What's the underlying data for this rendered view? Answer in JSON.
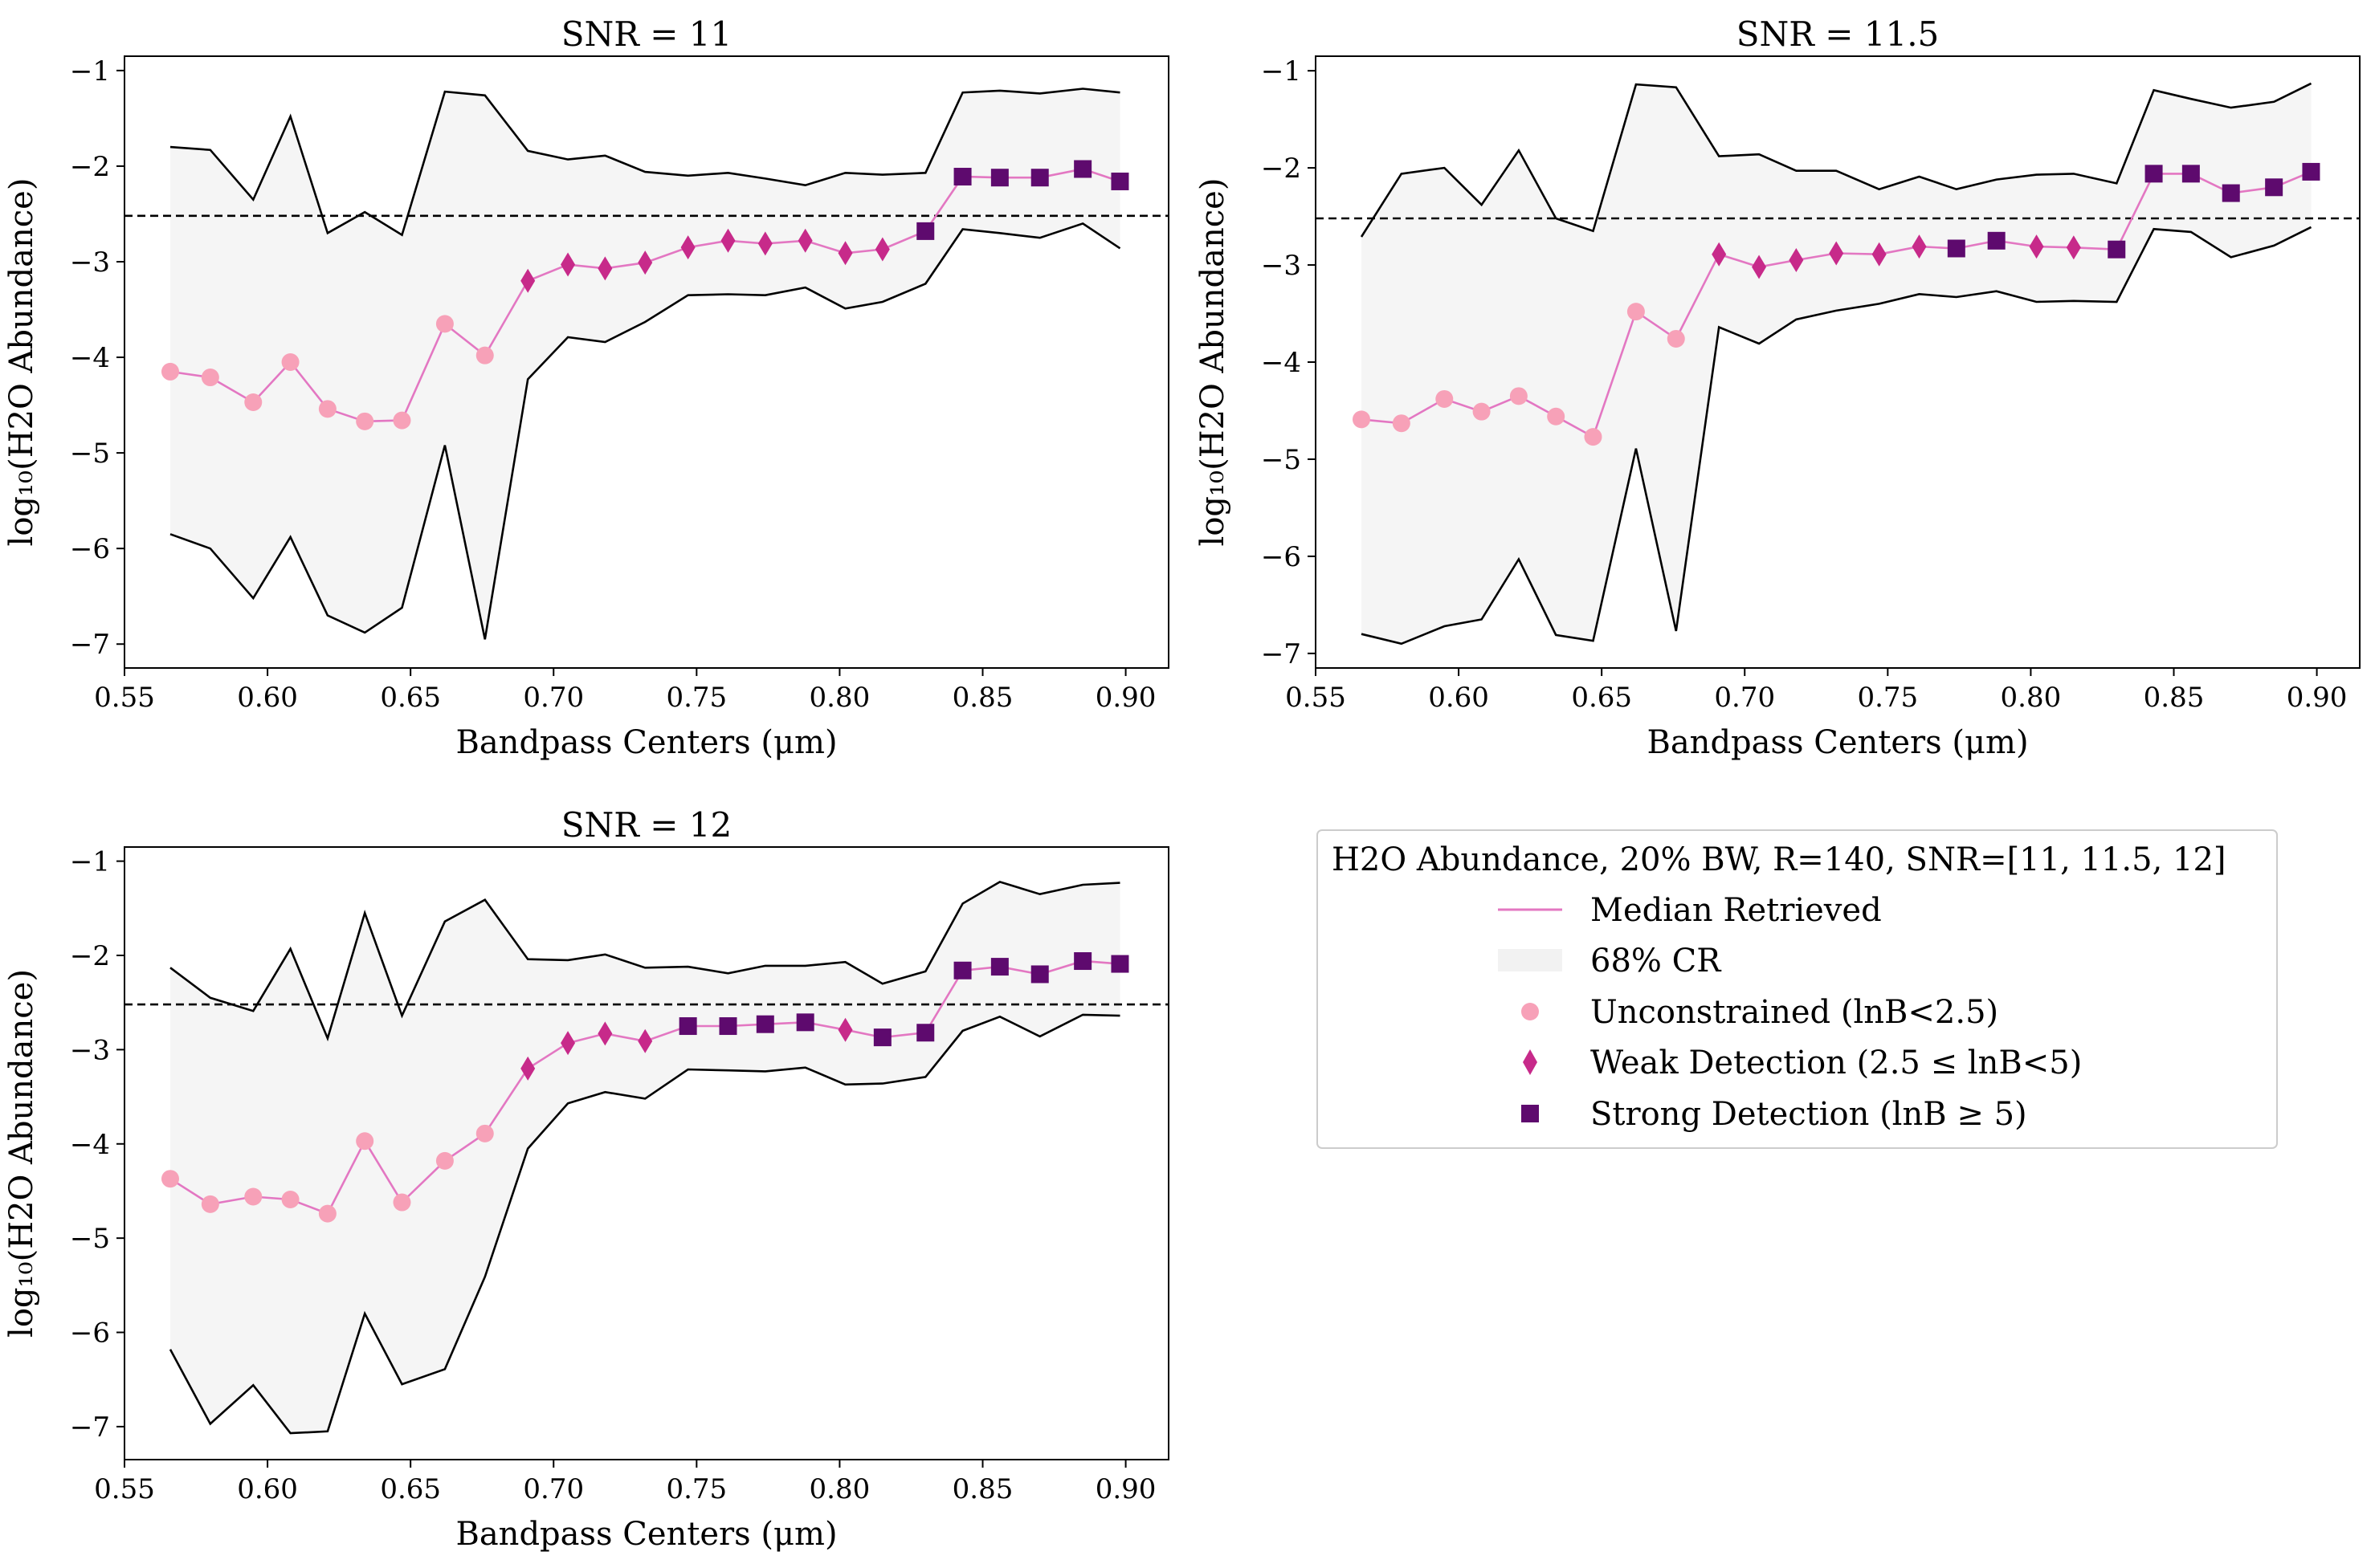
{
  "chart_data": [
    {
      "type": "line",
      "title": "SNR = 11",
      "xlabel": "Bandpass Centers (μm)",
      "ylabel": "log₁₀(H2O Abundance)",
      "xlim": [
        0.55,
        0.915
      ],
      "ylim": [
        -7.25,
        -0.85
      ],
      "xticks": [
        0.55,
        0.6,
        0.65,
        0.7,
        0.75,
        0.8,
        0.85,
        0.9
      ],
      "xtick_labels": [
        "0.55",
        "0.60",
        "0.65",
        "0.70",
        "0.75",
        "0.80",
        "0.85",
        "0.90"
      ],
      "yticks": [
        -7,
        -6,
        -5,
        -4,
        -3,
        -2,
        -1
      ],
      "ytick_labels": [
        "−7",
        "−6",
        "−5",
        "−4",
        "−3",
        "−2",
        "−1"
      ],
      "threshold": -2.52,
      "x": [
        0.566,
        0.58,
        0.595,
        0.608,
        0.621,
        0.634,
        0.647,
        0.662,
        0.676,
        0.691,
        0.705,
        0.718,
        0.732,
        0.747,
        0.761,
        0.774,
        0.788,
        0.802,
        0.815,
        0.83,
        0.843,
        0.856,
        0.87,
        0.885,
        0.898
      ],
      "median": [
        -4.15,
        -4.21,
        -4.47,
        -4.05,
        -4.54,
        -4.67,
        -4.66,
        -3.65,
        -3.98,
        -3.2,
        -3.03,
        -3.07,
        -3.01,
        -2.85,
        -2.78,
        -2.81,
        -2.78,
        -2.91,
        -2.87,
        -2.68,
        -2.11,
        -2.12,
        -2.12,
        -2.03,
        -2.16
      ],
      "upper": [
        -1.8,
        -1.83,
        -2.35,
        -1.48,
        -2.7,
        -2.48,
        -2.72,
        -1.22,
        -1.26,
        -1.84,
        -1.93,
        -1.89,
        -2.06,
        -2.1,
        -2.07,
        -2.13,
        -2.2,
        -2.07,
        -2.09,
        -2.07,
        -1.23,
        -1.21,
        -1.24,
        -1.19,
        -1.23
      ],
      "lower": [
        -5.85,
        -6.0,
        -6.52,
        -5.88,
        -6.7,
        -6.88,
        -6.62,
        -4.92,
        -6.95,
        -4.23,
        -3.79,
        -3.84,
        -3.63,
        -3.35,
        -3.34,
        -3.35,
        -3.27,
        -3.49,
        -3.42,
        -3.23,
        -2.66,
        -2.7,
        -2.75,
        -2.6,
        -2.86
      ],
      "markers": [
        "circle",
        "circle",
        "circle",
        "circle",
        "circle",
        "circle",
        "circle",
        "circle",
        "circle",
        "diamond",
        "diamond",
        "diamond",
        "diamond",
        "diamond",
        "diamond",
        "diamond",
        "diamond",
        "diamond",
        "diamond",
        "square",
        "square",
        "square",
        "square",
        "square",
        "square"
      ]
    },
    {
      "type": "line",
      "title": "SNR = 11.5",
      "xlabel": "Bandpass Centers (μm)",
      "ylabel": "log₁₀(H2O Abundance)",
      "xlim": [
        0.55,
        0.915
      ],
      "ylim": [
        -7.15,
        -0.85
      ],
      "xticks": [
        0.55,
        0.6,
        0.65,
        0.7,
        0.75,
        0.8,
        0.85,
        0.9
      ],
      "xtick_labels": [
        "0.55",
        "0.60",
        "0.65",
        "0.70",
        "0.75",
        "0.80",
        "0.85",
        "0.90"
      ],
      "yticks": [
        -7,
        -6,
        -5,
        -4,
        -3,
        -2,
        -1
      ],
      "ytick_labels": [
        "−7",
        "−6",
        "−5",
        "−4",
        "−3",
        "−2",
        "−1"
      ],
      "threshold": -2.52,
      "x": [
        0.566,
        0.58,
        0.595,
        0.608,
        0.621,
        0.634,
        0.647,
        0.662,
        0.676,
        0.691,
        0.705,
        0.718,
        0.732,
        0.747,
        0.761,
        0.774,
        0.788,
        0.802,
        0.815,
        0.83,
        0.843,
        0.856,
        0.87,
        0.885,
        0.898
      ],
      "median": [
        -4.59,
        -4.63,
        -4.38,
        -4.51,
        -4.35,
        -4.56,
        -4.77,
        -3.48,
        -3.76,
        -2.89,
        -3.02,
        -2.95,
        -2.88,
        -2.89,
        -2.81,
        -2.83,
        -2.75,
        -2.81,
        -2.82,
        -2.84,
        -2.06,
        -2.06,
        -2.26,
        -2.2,
        -2.04
      ],
      "upper": [
        -2.71,
        -2.06,
        -2.0,
        -2.38,
        -1.82,
        -2.52,
        -2.65,
        -1.14,
        -1.17,
        -1.88,
        -1.86,
        -2.03,
        -2.03,
        -2.22,
        -2.09,
        -2.22,
        -2.12,
        -2.07,
        -2.06,
        -2.16,
        -1.2,
        -1.29,
        -1.38,
        -1.32,
        -1.13
      ],
      "lower": [
        -6.8,
        -6.9,
        -6.72,
        -6.65,
        -6.03,
        -6.81,
        -6.87,
        -4.89,
        -6.77,
        -3.64,
        -3.81,
        -3.56,
        -3.47,
        -3.4,
        -3.3,
        -3.33,
        -3.27,
        -3.38,
        -3.37,
        -3.38,
        -2.63,
        -2.66,
        -2.92,
        -2.8,
        -2.61
      ],
      "markers": [
        "circle",
        "circle",
        "circle",
        "circle",
        "circle",
        "circle",
        "circle",
        "circle",
        "circle",
        "diamond",
        "diamond",
        "diamond",
        "diamond",
        "diamond",
        "diamond",
        "square",
        "square",
        "diamond",
        "diamond",
        "square",
        "square",
        "square",
        "square",
        "square",
        "square"
      ]
    },
    {
      "type": "line",
      "title": "SNR = 12",
      "xlabel": "Bandpass Centers (μm)",
      "ylabel": "log₁₀(H2O Abundance)",
      "xlim": [
        0.55,
        0.915
      ],
      "ylim": [
        -7.35,
        -0.85
      ],
      "xticks": [
        0.55,
        0.6,
        0.65,
        0.7,
        0.75,
        0.8,
        0.85,
        0.9
      ],
      "xtick_labels": [
        "0.55",
        "0.60",
        "0.65",
        "0.70",
        "0.75",
        "0.80",
        "0.85",
        "0.90"
      ],
      "yticks": [
        -7,
        -6,
        -5,
        -4,
        -3,
        -2,
        -1
      ],
      "ytick_labels": [
        "−7",
        "−6",
        "−5",
        "−4",
        "−3",
        "−2",
        "−1"
      ],
      "threshold": -2.52,
      "x": [
        0.566,
        0.58,
        0.595,
        0.608,
        0.621,
        0.634,
        0.647,
        0.662,
        0.676,
        0.691,
        0.705,
        0.718,
        0.732,
        0.747,
        0.761,
        0.774,
        0.788,
        0.802,
        0.815,
        0.83,
        0.843,
        0.856,
        0.87,
        0.885,
        0.898
      ],
      "median": [
        -4.37,
        -4.64,
        -4.56,
        -4.59,
        -4.74,
        -3.97,
        -4.62,
        -4.18,
        -3.89,
        -3.2,
        -2.93,
        -2.83,
        -2.91,
        -2.75,
        -2.75,
        -2.73,
        -2.71,
        -2.79,
        -2.87,
        -2.82,
        -2.16,
        -2.12,
        -2.2,
        -2.06,
        -2.09
      ],
      "upper": [
        -2.13,
        -2.45,
        -2.59,
        -1.93,
        -2.88,
        -1.55,
        -2.64,
        -1.64,
        -1.41,
        -2.04,
        -2.05,
        -1.99,
        -2.13,
        -2.12,
        -2.19,
        -2.11,
        -2.11,
        -2.07,
        -2.3,
        -2.17,
        -1.45,
        -1.22,
        -1.35,
        -1.25,
        -1.23
      ],
      "lower": [
        -6.18,
        -6.97,
        -6.56,
        -7.07,
        -7.05,
        -5.8,
        -6.55,
        -6.39,
        -5.41,
        -4.05,
        -3.57,
        -3.45,
        -3.52,
        -3.21,
        -3.22,
        -3.23,
        -3.19,
        -3.37,
        -3.36,
        -3.29,
        -2.8,
        -2.65,
        -2.86,
        -2.63,
        -2.64
      ],
      "markers": [
        "circle",
        "circle",
        "circle",
        "circle",
        "circle",
        "circle",
        "circle",
        "circle",
        "circle",
        "diamond",
        "diamond",
        "diamond",
        "diamond",
        "square",
        "square",
        "square",
        "square",
        "diamond",
        "square",
        "square",
        "square",
        "square",
        "square",
        "square",
        "square"
      ]
    }
  ],
  "legend": {
    "title": "H2O Abundance, 20% BW, R=140, SNR=[11, 11.5, 12]",
    "items": [
      {
        "kind": "line",
        "label": "Median Retrieved"
      },
      {
        "kind": "fill",
        "label": "68% CR"
      },
      {
        "kind": "circle",
        "label": "Unconstrained (lnB<2.5)"
      },
      {
        "kind": "diamond",
        "label": "Weak Detection (2.5 ≤ lnB<5)"
      },
      {
        "kind": "square",
        "label": "Strong Detection (lnB ≥ 5)"
      }
    ]
  },
  "colors": {
    "line": "#e377c2",
    "fill": "#f5f5f5",
    "bound": "#000000",
    "threshold": "#000000",
    "circle": "#f7a1b8",
    "diamond": "#c72a8a",
    "square": "#5e0a6e"
  }
}
